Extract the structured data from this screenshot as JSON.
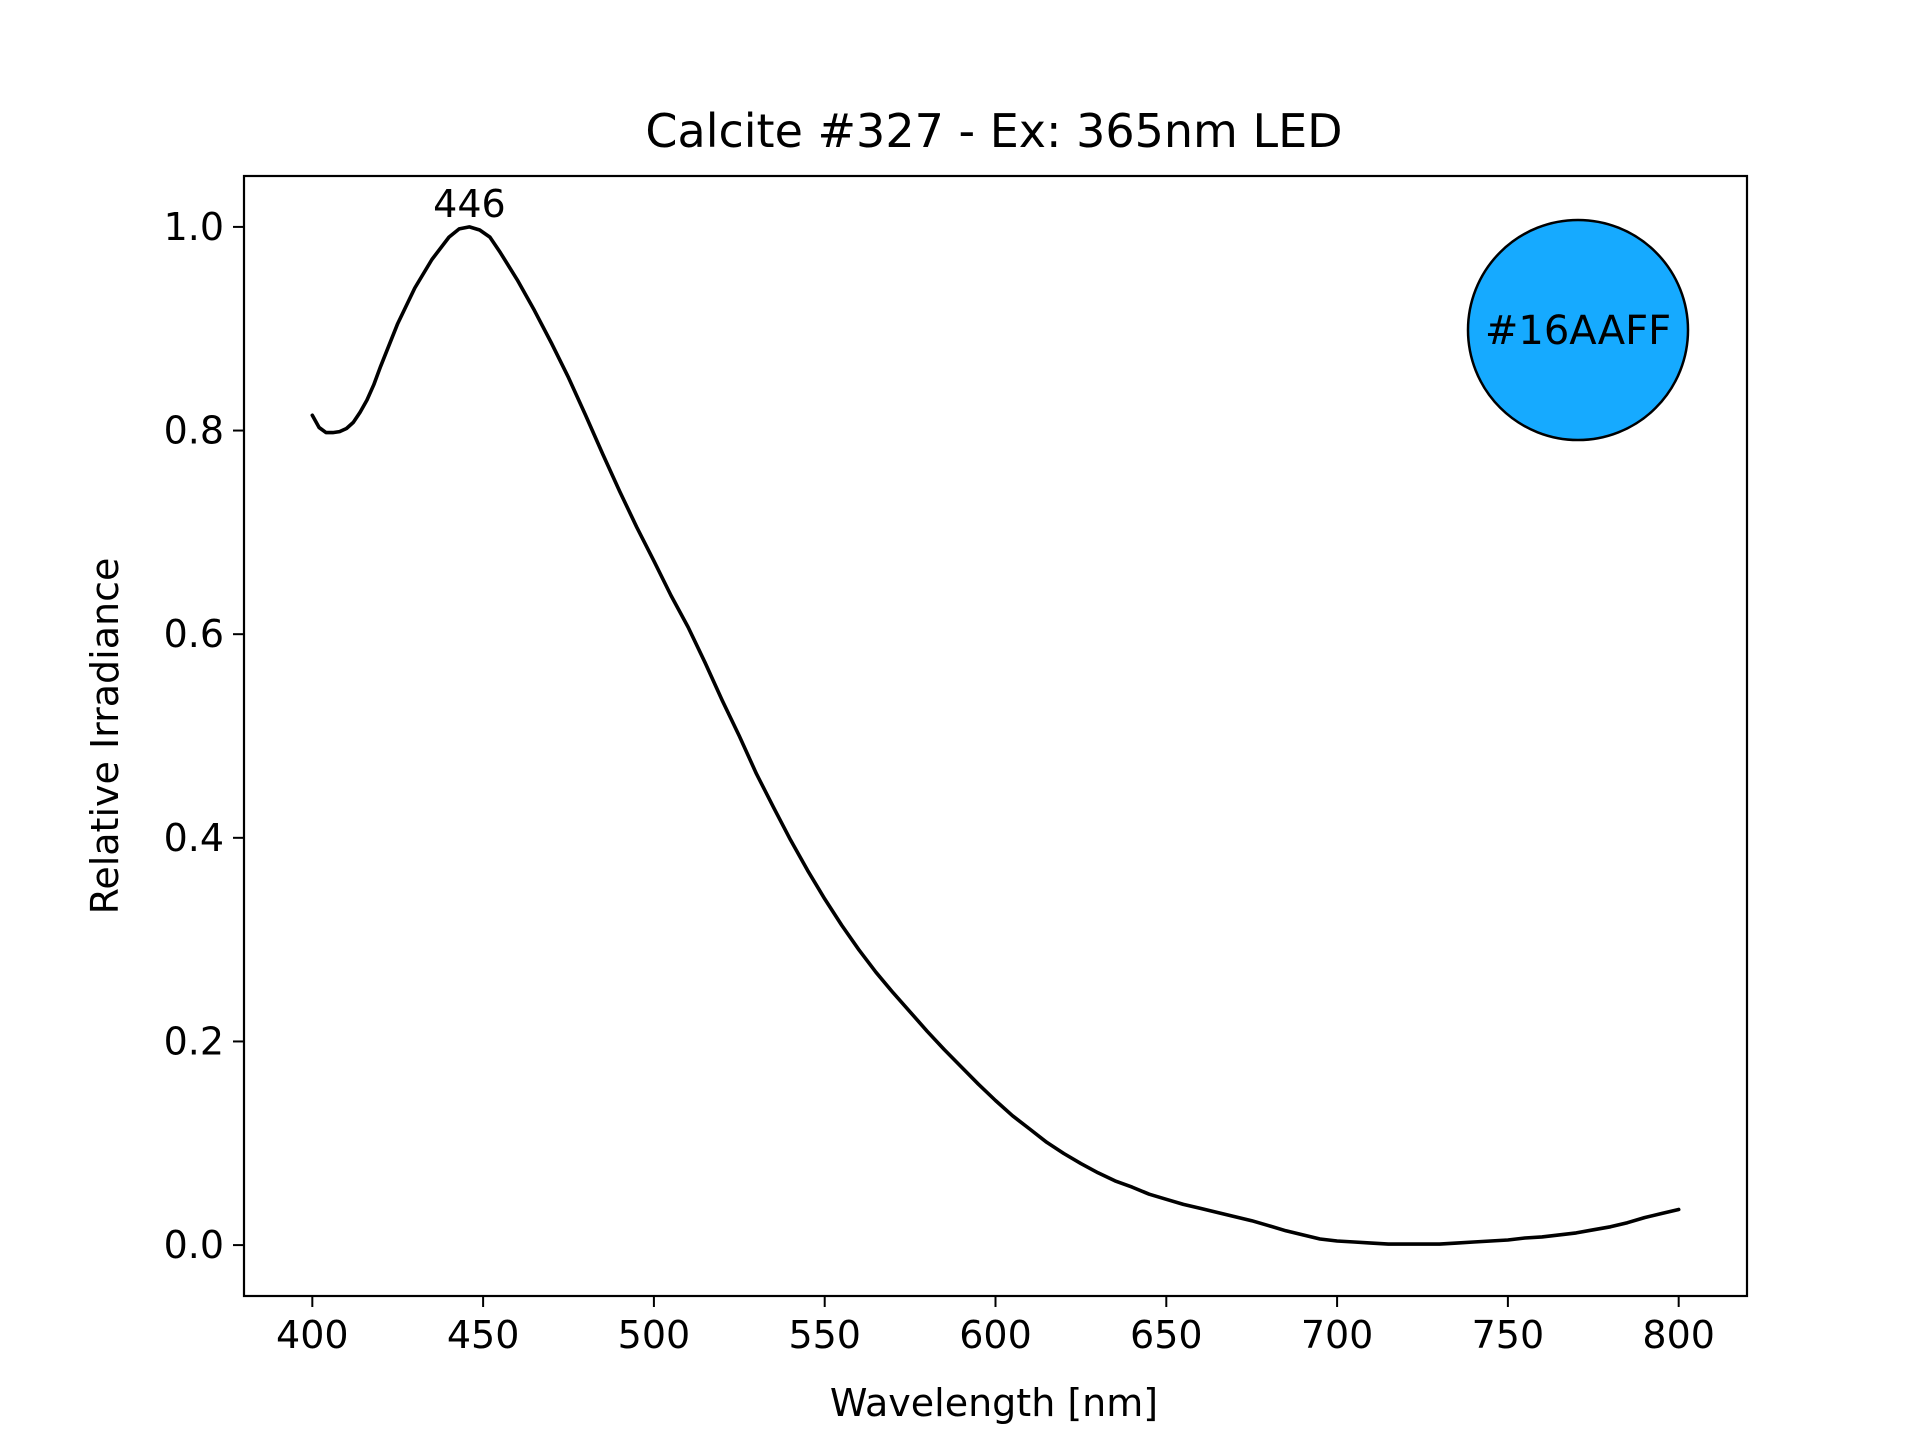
{
  "chart_data": {
    "type": "line",
    "title": "Calcite #327 - Ex: 365nm LED",
    "xlabel": "Wavelength [nm]",
    "ylabel": "Relative Irradiance",
    "xlim": [
      380,
      820
    ],
    "ylim": [
      -0.05,
      1.05
    ],
    "grid": false,
    "x_ticks": [
      "400",
      "450",
      "500",
      "550",
      "600",
      "650",
      "700",
      "750",
      "800"
    ],
    "y_ticks": [
      "0.0",
      "0.2",
      "0.4",
      "0.6",
      "0.8",
      "1.0"
    ],
    "series": [
      {
        "color": "#000000",
        "x": [
          400,
          402,
          404,
          406,
          408,
          410,
          412,
          414,
          416,
          418,
          420,
          425,
          430,
          435,
          440,
          443,
          446,
          449,
          452,
          455,
          460,
          465,
          470,
          475,
          480,
          485,
          490,
          495,
          500,
          505,
          510,
          515,
          520,
          525,
          530,
          535,
          540,
          545,
          550,
          555,
          560,
          565,
          570,
          575,
          580,
          585,
          590,
          595,
          600,
          605,
          610,
          615,
          620,
          625,
          630,
          635,
          640,
          645,
          650,
          655,
          660,
          665,
          670,
          675,
          680,
          685,
          690,
          695,
          700,
          705,
          710,
          715,
          720,
          725,
          730,
          735,
          740,
          745,
          750,
          755,
          760,
          765,
          770,
          775,
          780,
          785,
          790,
          795,
          800
        ],
        "y": [
          0.815,
          0.803,
          0.798,
          0.798,
          0.799,
          0.802,
          0.808,
          0.818,
          0.83,
          0.845,
          0.863,
          0.905,
          0.94,
          0.968,
          0.99,
          0.998,
          1.0,
          0.997,
          0.99,
          0.975,
          0.948,
          0.918,
          0.886,
          0.852,
          0.815,
          0.777,
          0.74,
          0.705,
          0.672,
          0.638,
          0.607,
          0.572,
          0.535,
          0.5,
          0.463,
          0.43,
          0.398,
          0.368,
          0.34,
          0.314,
          0.29,
          0.268,
          0.248,
          0.229,
          0.21,
          0.192,
          0.175,
          0.158,
          0.142,
          0.127,
          0.114,
          0.101,
          0.09,
          0.08,
          0.071,
          0.063,
          0.057,
          0.05,
          0.045,
          0.04,
          0.036,
          0.032,
          0.028,
          0.024,
          0.019,
          0.014,
          0.01,
          0.006,
          0.004,
          0.003,
          0.002,
          0.001,
          0.001,
          0.001,
          0.001,
          0.002,
          0.003,
          0.004,
          0.005,
          0.007,
          0.008,
          0.01,
          0.012,
          0.015,
          0.018,
          0.022,
          0.027,
          0.031,
          0.035
        ]
      }
    ],
    "annotations": [
      {
        "text": "446",
        "x": 446,
        "y": 1.0
      }
    ],
    "color_swatch": {
      "label": "#16AAFF",
      "fill": "#16AAFF"
    }
  }
}
